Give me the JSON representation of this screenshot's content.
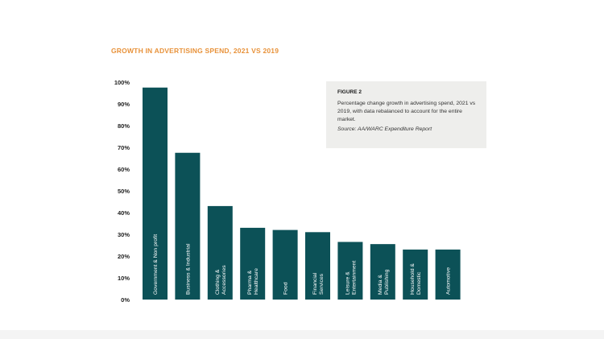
{
  "header": {
    "title": "GROWTH IN ADVERTISING SPEND, 2021 VS 2019"
  },
  "note": {
    "heading": "FIGURE 2",
    "body": "Percentage change growth in advertising spend, 2021 vs 2019, with data rebalanced to account for the entire market.",
    "source": "Source: AA/WARC Expenditure Report"
  },
  "colors": {
    "bar": "#0c5157",
    "title": "#e8923a",
    "note_bg": "#eeeeec"
  },
  "chart_data": {
    "type": "bar",
    "title": "GROWTH IN ADVERTISING SPEND, 2021 VS 2019",
    "xlabel": "",
    "ylabel": "",
    "ylim": [
      0,
      100
    ],
    "yticks": [
      "0%",
      "10%",
      "20%",
      "30%",
      "40%",
      "50%",
      "60%",
      "70%",
      "80%",
      "90%",
      "100%"
    ],
    "grid": false,
    "categories": [
      [
        "Government & Non profit"
      ],
      [
        "Business & Industrial"
      ],
      [
        "Clothing &",
        "Accessories"
      ],
      [
        "Pharma &",
        "Healthcare"
      ],
      [
        "Food"
      ],
      [
        "Financial",
        "Services"
      ],
      [
        "Leisure &",
        "Entertainment"
      ],
      [
        "Media &",
        "Publishing"
      ],
      [
        "Household &",
        "Domestic"
      ],
      [
        "Automotive"
      ]
    ],
    "values": [
      97.5,
      67.5,
      43,
      33,
      32,
      31,
      26.5,
      25.5,
      23,
      23
    ]
  }
}
